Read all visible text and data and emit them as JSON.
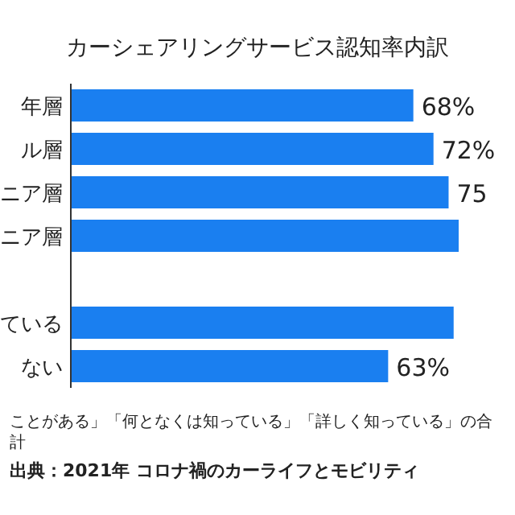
{
  "chart_data": {
    "type": "bar",
    "orientation": "horizontal",
    "title": "カーシェアリングサービス認知率内訳",
    "categories": [
      "年層",
      "ル層",
      "ニア層",
      "ニア層",
      null,
      "ている",
      "ない"
    ],
    "values": [
      68,
      72,
      75,
      77,
      null,
      76,
      63
    ],
    "value_labels": [
      "68%",
      "72%",
      "75",
      null,
      null,
      null,
      "63%"
    ],
    "color": "#1a7ff0",
    "annotations": [
      "ことがある」「何となくは知っている」「詳しく知っている」の合計",
      "出典：2021年 コロナ禍のカーライフとモビリティ"
    ]
  }
}
